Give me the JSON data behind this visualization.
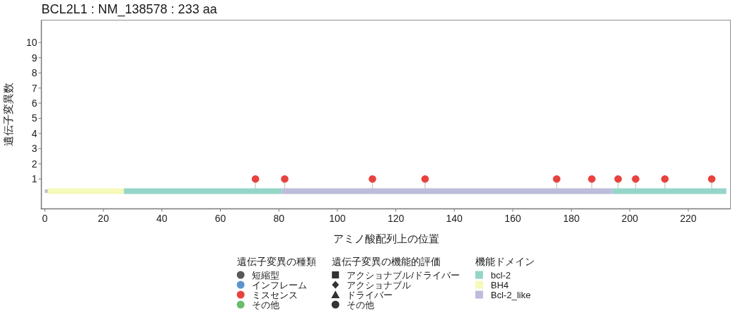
{
  "chart_data": {
    "type": "lollipop",
    "title": "BCL2L1 : NM_138578 : 233 aa",
    "xlabel": "アミノ酸配列上の位置",
    "ylabel": "遺伝子変異数",
    "legend_title": [
      "遺伝子変異の種類",
      "遺伝子変異の機能的評価",
      "機能ドメイン"
    ],
    "series": [
      {
        "name": "短縮型",
        "color": "#595959",
        "marker": "circle"
      },
      {
        "name": "インフレーム",
        "color": "#5b95cb",
        "marker": "circle"
      },
      {
        "name": "ミスセンス",
        "color": "#e8423f",
        "marker": "circle",
        "x": [
          72,
          82,
          112,
          130,
          175,
          187,
          196,
          202,
          212,
          228
        ],
        "values": [
          1,
          1,
          1,
          1,
          1,
          1,
          1,
          1,
          1,
          1
        ]
      },
      {
        "name": "その他",
        "color": "#6abd6a",
        "marker": "circle"
      },
      {
        "name": "アクショナブル/ドライバー",
        "type": "scatter",
        "color": "#333333",
        "marker": "square"
      },
      {
        "name": "アクショナブル",
        "type": "scatter",
        "color": "#333333",
        "marker": "diamond"
      },
      {
        "name": "ドライバー",
        "type": "scatter",
        "color": "#333333",
        "marker": "triangle"
      },
      {
        "name": "その他",
        "type": "scatter",
        "color": "#333333",
        "marker": "circle"
      },
      {
        "type": "line",
        "color": "#bdbdbd",
        "x": [
          0,
          1
        ],
        "values": [
          0.2,
          0.2
        ]
      },
      {
        "name": "bcl-2",
        "type": "line",
        "color": "#95d5c8",
        "x": [
          27,
          81,
          null,
          194,
          233
        ],
        "values": [
          0.2,
          0.2,
          null,
          0.2,
          0.2
        ]
      },
      {
        "name": "BH4",
        "type": "line",
        "color": "#f5f9b9",
        "x": [
          1,
          27
        ],
        "values": [
          0.2,
          0.2
        ]
      },
      {
        "name": "Bcl-2_like",
        "type": "line",
        "color": "#bcbcdb",
        "x": [
          81,
          194
        ],
        "values": [
          0.2,
          0.2
        ]
      }
    ],
    "xlim": [
      -1.2,
      234.4
    ],
    "ylim": [
      -0.97,
      11.48
    ],
    "xticks": [
      0,
      20,
      40,
      60,
      80,
      100,
      120,
      140,
      160,
      180,
      200,
      220
    ],
    "yticks": [
      1,
      2,
      3,
      4,
      5,
      6,
      7,
      8,
      9,
      10
    ],
    "legend": "bottom"
  }
}
